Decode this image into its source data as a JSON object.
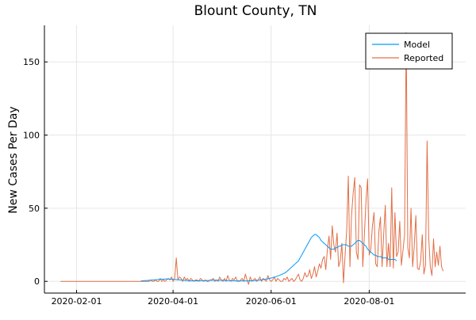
{
  "chart_data": {
    "type": "line",
    "title": "Blount County, TN",
    "xlabel": "",
    "ylabel": "New Cases Per Day",
    "x_start": "2020-01-22",
    "xlim": [
      "2020-01-12",
      "2020-09-30"
    ],
    "ylim": [
      -8,
      175
    ],
    "x_ticks": [
      "2020-02-01",
      "2020-04-01",
      "2020-06-01",
      "2020-08-01"
    ],
    "y_ticks": [
      0,
      50,
      100,
      150
    ],
    "grid": true,
    "legend_position": "top-right",
    "series": [
      {
        "name": "Model",
        "color": "#009AFA",
        "x_start": "2020-03-12",
        "values": [
          0.3,
          0.4,
          0.5,
          0.5,
          0.6,
          0.7,
          0.8,
          0.9,
          1,
          1.1,
          1.2,
          1.3,
          1.4,
          1.5,
          1.5,
          1.6,
          1.6,
          1.6,
          1.5,
          1.5,
          1.4,
          1.3,
          1.2,
          1.1,
          1,
          0.9,
          0.8,
          0.7,
          0.6,
          0.5,
          0.5,
          0.4,
          0.4,
          0.4,
          0.4,
          0.4,
          0.4,
          0.4,
          0.5,
          0.5,
          0.5,
          0.6,
          0.6,
          0.7,
          0.7,
          0.8,
          0.8,
          0.8,
          0.8,
          0.8,
          0.7,
          0.7,
          0.6,
          0.6,
          0.5,
          0.5,
          0.4,
          0.4,
          0.4,
          0.3,
          0.3,
          0.3,
          0.3,
          0.3,
          0.3,
          0.3,
          0.3,
          0.4,
          0.4,
          0.5,
          0.5,
          0.6,
          0.7,
          0.8,
          0.9,
          1,
          1.2,
          1.4,
          1.6,
          1.8,
          2,
          2.3,
          2.6,
          2.9,
          3.2,
          3.6,
          4,
          4.5,
          5,
          5.5,
          6,
          7,
          8,
          9,
          10,
          11,
          12,
          13,
          14,
          16,
          18,
          20,
          22,
          24,
          26,
          28,
          30,
          31,
          32,
          32,
          31,
          30,
          28,
          27,
          26,
          25,
          24,
          23,
          22,
          22,
          22,
          23,
          23,
          24,
          24,
          25,
          25,
          25,
          25,
          24,
          24,
          24,
          25,
          26,
          27,
          28,
          28,
          27,
          26,
          25,
          24,
          22,
          21,
          20,
          19,
          18,
          18,
          17,
          17,
          17,
          16,
          16,
          16,
          16,
          15,
          15,
          15,
          15,
          15,
          14
        ]
      },
      {
        "name": "Reported",
        "color": "#E26F46",
        "x_start": "2020-01-22",
        "values": [
          0,
          0,
          0,
          0,
          0,
          0,
          0,
          0,
          0,
          0,
          0,
          0,
          0,
          0,
          0,
          0,
          0,
          0,
          0,
          0,
          0,
          0,
          0,
          0,
          0,
          0,
          0,
          0,
          0,
          0,
          0,
          0,
          0,
          0,
          0,
          0,
          0,
          0,
          0,
          0,
          0,
          0,
          0,
          0,
          0,
          0,
          0,
          0,
          0,
          0,
          0,
          0,
          0,
          0,
          0,
          0,
          1,
          0,
          0,
          1,
          0,
          0,
          2,
          0,
          1,
          0,
          1,
          2,
          1,
          3,
          0,
          2,
          16,
          1,
          3,
          2,
          0,
          3,
          1,
          2,
          0,
          2,
          1,
          0,
          1,
          1,
          0,
          2,
          1,
          0,
          1,
          0,
          0,
          1,
          1,
          2,
          0,
          1,
          0,
          3,
          1,
          0,
          2,
          0,
          4,
          1,
          0,
          2,
          1,
          3,
          0,
          0,
          1,
          2,
          0,
          5,
          1,
          -2,
          3,
          0,
          1,
          2,
          0,
          1,
          3,
          0,
          2,
          1,
          0,
          4,
          1,
          0,
          1,
          3,
          0,
          2,
          1,
          0,
          0,
          2,
          1,
          3,
          0,
          1,
          2,
          0,
          1,
          3,
          5,
          1,
          0,
          2,
          6,
          3,
          4,
          8,
          2,
          5,
          10,
          3,
          7,
          12,
          9,
          15,
          17,
          8,
          22,
          31,
          15,
          38,
          25,
          20,
          33,
          10,
          14,
          26,
          -1,
          18,
          35,
          72,
          10,
          45,
          60,
          71,
          20,
          15,
          66,
          64,
          10,
          32,
          55,
          70,
          18,
          22,
          38,
          47,
          12,
          10,
          34,
          44,
          10,
          32,
          52,
          10,
          26,
          10,
          64,
          9,
          47,
          17,
          20,
          41,
          11,
          21,
          32,
          170,
          23,
          16,
          50,
          10,
          24,
          45,
          9,
          8,
          14,
          32,
          5,
          11,
          96,
          30,
          10,
          4,
          29,
          10,
          20,
          11,
          24,
          10,
          7
        ]
      }
    ]
  }
}
